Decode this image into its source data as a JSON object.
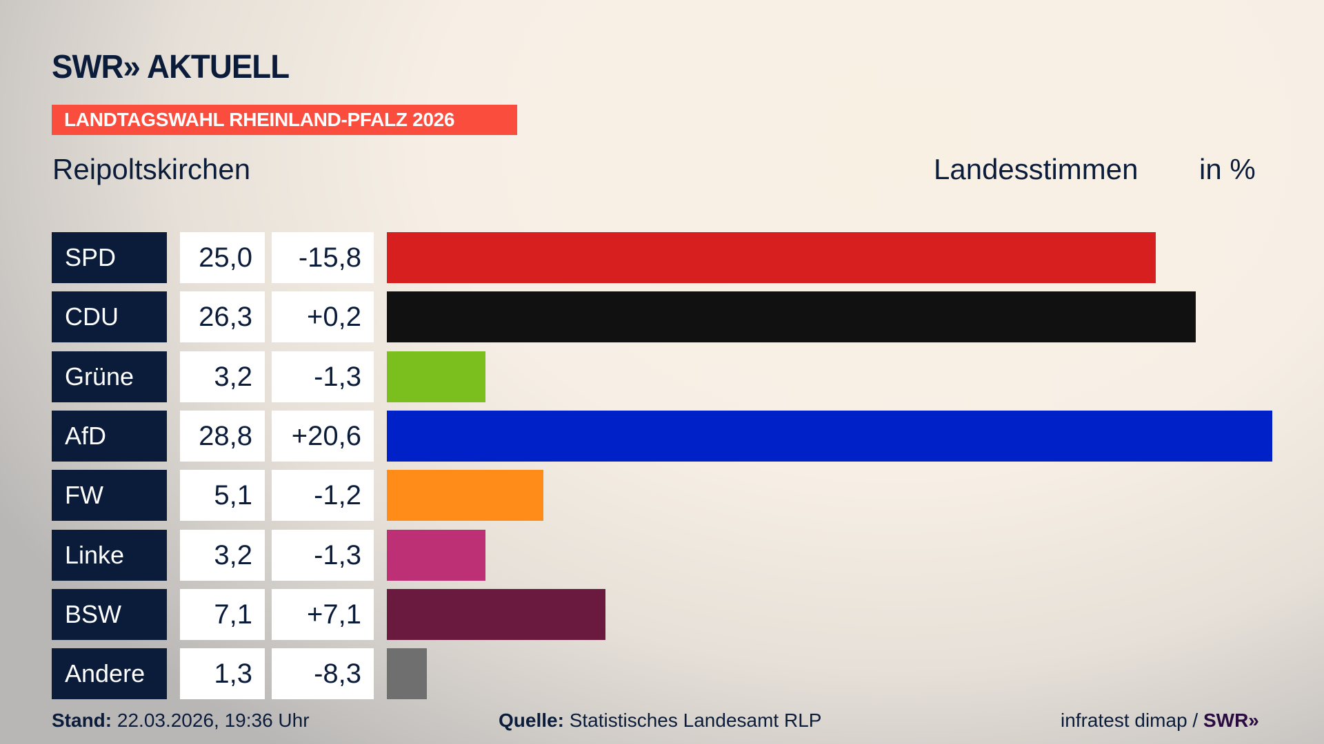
{
  "header": {
    "logo": "SWR» AKTUELL",
    "banner": "LANDTAGSWAHL RHEINLAND-PFALZ 2026",
    "place": "Reipoltskirchen",
    "vote_type": "Landesstimmen",
    "unit": "in %"
  },
  "chart_data": {
    "type": "bar",
    "orientation": "horizontal",
    "categories": [
      "SPD",
      "CDU",
      "Grüne",
      "AfD",
      "FW",
      "Linke",
      "BSW",
      "Andere"
    ],
    "values": [
      25.0,
      26.3,
      3.2,
      28.8,
      5.1,
      3.2,
      7.1,
      1.3
    ],
    "value_labels": [
      "25,0",
      "26,3",
      "3,2",
      "28,8",
      "5,1",
      "3,2",
      "7,1",
      "1,3"
    ],
    "diff_labels": [
      "-15,8",
      "+0,2",
      "-1,3",
      "+20,6",
      "-1,2",
      "-1,3",
      "+7,1",
      "-8,3"
    ],
    "colors": [
      "#d81f20",
      "#111111",
      "#7abf1d",
      "#0021c8",
      "#ff8c18",
      "#bd3075",
      "#6a1a3f",
      "#6f6f6f"
    ],
    "xlim": [
      0,
      28.8
    ]
  },
  "footer": {
    "stand_label": "Stand:",
    "stand_value": "22.03.2026, 19:36 Uhr",
    "source_label": "Quelle:",
    "source_value": "Statistisches Landesamt RLP",
    "credit": "infratest dimap / ",
    "credit_logo": "SWR»"
  }
}
